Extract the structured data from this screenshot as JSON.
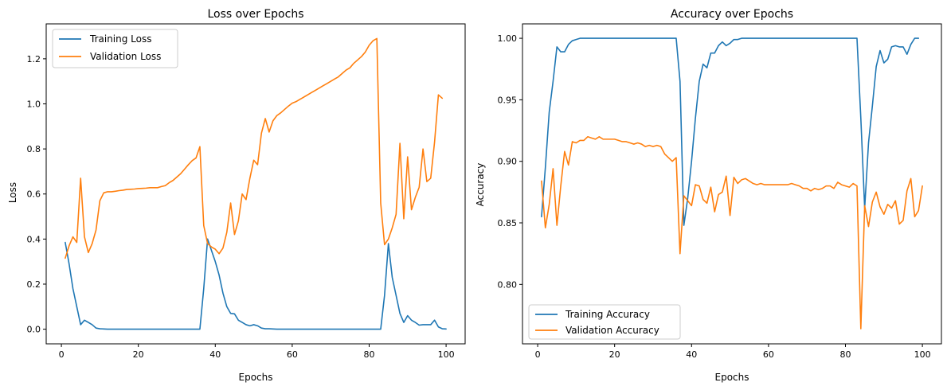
{
  "chart_data": [
    {
      "type": "line",
      "title": "Loss over Epochs",
      "xlabel": "Epochs",
      "ylabel": "Loss",
      "xlim": [
        -3.95,
        104.95
      ],
      "ylim": [
        -0.065,
        1.355
      ],
      "xticks": [
        0,
        20,
        40,
        60,
        80,
        100
      ],
      "yticks": [
        0.0,
        0.2,
        0.4,
        0.6,
        0.8,
        1.0,
        1.2
      ],
      "xtick_labels": [
        "0",
        "20",
        "40",
        "60",
        "80",
        "100"
      ],
      "ytick_labels": [
        "0.0",
        "0.2",
        "0.4",
        "0.6",
        "0.8",
        "1.0",
        "1.2"
      ],
      "grid": false,
      "legend": "upper-left",
      "x_start": 1,
      "series": [
        {
          "name": "Training Loss",
          "color": "#1f77b4",
          "values": [
            0.385,
            0.29,
            0.18,
            0.1,
            0.02,
            0.04,
            0.03,
            0.02,
            0.005,
            0.002,
            0.001,
            0,
            0,
            0,
            0,
            0,
            0,
            0,
            0,
            0,
            0,
            0,
            0,
            0,
            0,
            0,
            0,
            0,
            0,
            0,
            0,
            0,
            0,
            0,
            0,
            0,
            0.18,
            0.4,
            0.35,
            0.3,
            0.24,
            0.16,
            0.1,
            0.07,
            0.068,
            0.04,
            0.03,
            0.02,
            0.015,
            0.02,
            0.015,
            0.005,
            0.002,
            0.002,
            0.001,
            0,
            0,
            0,
            0,
            0,
            0,
            0,
            0,
            0,
            0,
            0,
            0,
            0,
            0,
            0,
            0,
            0,
            0,
            0,
            0,
            0,
            0,
            0,
            0,
            0,
            0,
            0,
            0,
            0.15,
            0.38,
            0.23,
            0.15,
            0.07,
            0.03,
            0.06,
            0.04,
            0.03,
            0.018,
            0.02,
            0.02,
            0.02,
            0.04,
            0.01,
            0.002,
            0.001
          ]
        },
        {
          "name": "Validation Loss",
          "color": "#ff7f0e",
          "values": [
            0.315,
            0.37,
            0.41,
            0.385,
            0.67,
            0.41,
            0.34,
            0.38,
            0.44,
            0.57,
            0.605,
            0.61,
            0.61,
            0.612,
            0.615,
            0.617,
            0.62,
            0.621,
            0.622,
            0.624,
            0.625,
            0.626,
            0.628,
            0.628,
            0.628,
            0.633,
            0.637,
            0.65,
            0.66,
            0.675,
            0.69,
            0.71,
            0.73,
            0.748,
            0.76,
            0.81,
            0.46,
            0.38,
            0.365,
            0.355,
            0.335,
            0.36,
            0.43,
            0.56,
            0.42,
            0.48,
            0.6,
            0.575,
            0.67,
            0.75,
            0.73,
            0.87,
            0.935,
            0.875,
            0.925,
            0.948,
            0.96,
            0.975,
            0.99,
            1.003,
            1.01,
            1.02,
            1.03,
            1.04,
            1.05,
            1.06,
            1.07,
            1.08,
            1.09,
            1.1,
            1.11,
            1.12,
            1.135,
            1.15,
            1.16,
            1.18,
            1.195,
            1.21,
            1.23,
            1.26,
            1.28,
            1.29,
            0.56,
            0.375,
            0.4,
            0.45,
            0.51,
            0.825,
            0.49,
            0.765,
            0.53,
            0.585,
            0.63,
            0.8,
            0.655,
            0.67,
            0.83,
            1.04,
            1.025
          ]
        }
      ]
    },
    {
      "type": "line",
      "title": "Accuracy over Epochs",
      "xlabel": "Epochs",
      "ylabel": "Accuracy",
      "xlim": [
        -3.95,
        104.95
      ],
      "ylim": [
        0.7517,
        1.0117
      ],
      "xticks": [
        0,
        20,
        40,
        60,
        80,
        100
      ],
      "yticks": [
        0.8,
        0.85,
        0.9,
        0.95,
        1.0
      ],
      "xtick_labels": [
        "0",
        "20",
        "40",
        "60",
        "80",
        "100"
      ],
      "ytick_labels": [
        "0.80",
        "0.85",
        "0.90",
        "0.95",
        "1.00"
      ],
      "grid": false,
      "legend": "lower-left",
      "x_start": 1,
      "series": [
        {
          "name": "Training Accuracy",
          "color": "#1f77b4",
          "values": [
            0.855,
            0.895,
            0.94,
            0.965,
            0.993,
            0.989,
            0.989,
            0.995,
            0.998,
            0.999,
            1,
            1,
            1,
            1,
            1,
            1,
            1,
            1,
            1,
            1,
            1,
            1,
            1,
            1,
            1,
            1,
            1,
            1,
            1,
            1,
            1,
            1,
            1,
            1,
            1,
            1,
            0.965,
            0.848,
            0.87,
            0.9,
            0.935,
            0.965,
            0.979,
            0.976,
            0.988,
            0.988,
            0.994,
            0.997,
            0.994,
            0.996,
            0.999,
            0.999,
            1,
            1,
            1,
            1,
            1,
            1,
            1,
            1,
            1,
            1,
            1,
            1,
            1,
            1,
            1,
            1,
            1,
            1,
            1,
            1,
            1,
            1,
            1,
            1,
            1,
            1,
            1,
            1,
            1,
            1,
            1,
            0.935,
            0.862,
            0.915,
            0.945,
            0.977,
            0.99,
            0.98,
            0.983,
            0.993,
            0.994,
            0.993,
            0.993,
            0.987,
            0.995,
            1,
            1
          ]
        },
        {
          "name": "Validation Accuracy",
          "color": "#ff7f0e",
          "values": [
            0.884,
            0.846,
            0.865,
            0.894,
            0.848,
            0.88,
            0.908,
            0.897,
            0.916,
            0.915,
            0.917,
            0.917,
            0.92,
            0.919,
            0.918,
            0.92,
            0.918,
            0.918,
            0.918,
            0.918,
            0.917,
            0.916,
            0.916,
            0.915,
            0.914,
            0.915,
            0.914,
            0.912,
            0.913,
            0.912,
            0.913,
            0.912,
            0.906,
            0.903,
            0.9,
            0.903,
            0.825,
            0.872,
            0.868,
            0.864,
            0.881,
            0.88,
            0.869,
            0.866,
            0.879,
            0.859,
            0.873,
            0.875,
            0.888,
            0.856,
            0.887,
            0.882,
            0.885,
            0.886,
            0.884,
            0.882,
            0.881,
            0.882,
            0.881,
            0.881,
            0.881,
            0.881,
            0.881,
            0.881,
            0.881,
            0.882,
            0.881,
            0.88,
            0.878,
            0.878,
            0.876,
            0.878,
            0.877,
            0.878,
            0.88,
            0.88,
            0.878,
            0.883,
            0.881,
            0.88,
            0.879,
            0.882,
            0.88,
            0.764,
            0.864,
            0.847,
            0.867,
            0.875,
            0.863,
            0.857,
            0.865,
            0.862,
            0.868,
            0.849,
            0.852,
            0.876,
            0.886,
            0.855,
            0.86,
            0.88
          ]
        }
      ]
    }
  ]
}
